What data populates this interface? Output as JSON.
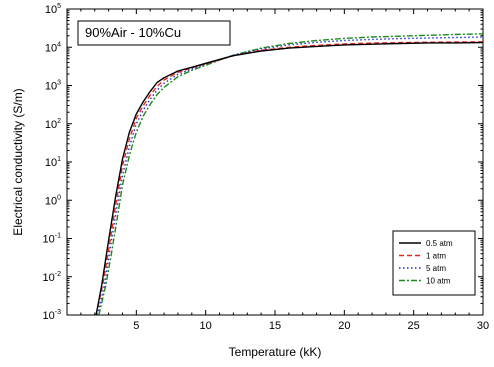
{
  "chart_data": {
    "type": "line",
    "title": "",
    "annotation": "90%Air - 10%Cu",
    "xlabel": "Temperature (kK)",
    "ylabel": "Electrical conductivity (S/m)",
    "xlim": [
      0,
      30
    ],
    "ylim_log10": [
      -3,
      5
    ],
    "y_scale": "log",
    "grid": false,
    "legend_position": "lower-right",
    "x_ticks": [
      5,
      10,
      15,
      20,
      25,
      30
    ],
    "y_ticks": [
      {
        "exp": -3,
        "base": "10",
        "sup": "-3"
      },
      {
        "exp": -2,
        "base": "10",
        "sup": "-2"
      },
      {
        "exp": -1,
        "base": "10",
        "sup": "-1"
      },
      {
        "exp": 0,
        "base": "10",
        "sup": "0"
      },
      {
        "exp": 1,
        "base": "10",
        "sup": "1"
      },
      {
        "exp": 2,
        "base": "10",
        "sup": "2"
      },
      {
        "exp": 3,
        "base": "10",
        "sup": "3"
      },
      {
        "exp": 4,
        "base": "10",
        "sup": "4"
      },
      {
        "exp": 5,
        "base": "10",
        "sup": "5"
      }
    ],
    "series": [
      {
        "name": "0.5 atm",
        "color": "#000000",
        "dash": "",
        "x": [
          2.1,
          2.5,
          3,
          3.5,
          4,
          4.5,
          5,
          5.5,
          6,
          6.5,
          7,
          8,
          9,
          10,
          11,
          12,
          14,
          16,
          18,
          20,
          22,
          24,
          26,
          28,
          30
        ],
        "y": [
          0.001,
          0.006,
          0.09,
          1.2,
          12,
          60,
          180,
          380,
          700,
          1200,
          1600,
          2400,
          3000,
          3800,
          4800,
          6000,
          8000,
          9500,
          10500,
          11500,
          12000,
          12500,
          13000,
          13000,
          13200
        ]
      },
      {
        "name": "1 atm",
        "color": "#e8251e",
        "dash": "5,3",
        "x": [
          2.1,
          2.6,
          3,
          3.5,
          4,
          4.5,
          5,
          5.5,
          6,
          6.5,
          7,
          8,
          9,
          10,
          11,
          12,
          14,
          16,
          18,
          20,
          22,
          24,
          26,
          28,
          30
        ],
        "y": [
          0.001,
          0.007,
          0.05,
          0.7,
          8,
          40,
          140,
          300,
          560,
          950,
          1400,
          2200,
          2900,
          3700,
          4700,
          6000,
          8300,
          10000,
          11200,
          12200,
          12800,
          13200,
          13500,
          13700,
          13900
        ]
      },
      {
        "name": "5 atm",
        "color": "#1f2fd6",
        "dash": "1.5,2.5",
        "x": [
          2.2,
          2.7,
          3,
          3.5,
          4,
          4.5,
          5,
          5.5,
          6,
          6.5,
          7,
          8,
          9,
          10,
          11,
          12,
          14,
          16,
          18,
          20,
          22,
          24,
          26,
          28,
          30
        ],
        "y": [
          0.001,
          0.006,
          0.03,
          0.4,
          4.5,
          25,
          100,
          230,
          440,
          760,
          1150,
          1950,
          2700,
          3600,
          4700,
          6200,
          9000,
          11500,
          13500,
          15000,
          16000,
          16800,
          17500,
          18000,
          18500
        ]
      },
      {
        "name": "10 atm",
        "color": "#1e8a1e",
        "dash": "6,2,2,2",
        "x": [
          2.3,
          2.8,
          3.2,
          3.6,
          4,
          4.5,
          5,
          5.5,
          6,
          6.5,
          7,
          8,
          9,
          10,
          11,
          12,
          14,
          16,
          18,
          20,
          22,
          24,
          26,
          28,
          30
        ],
        "y": [
          0.001,
          0.006,
          0.04,
          0.3,
          2.5,
          15,
          60,
          160,
          320,
          580,
          900,
          1700,
          2500,
          3400,
          4600,
          6200,
          9500,
          12500,
          15000,
          17000,
          18500,
          19500,
          20500,
          21500,
          22500
        ]
      }
    ]
  }
}
